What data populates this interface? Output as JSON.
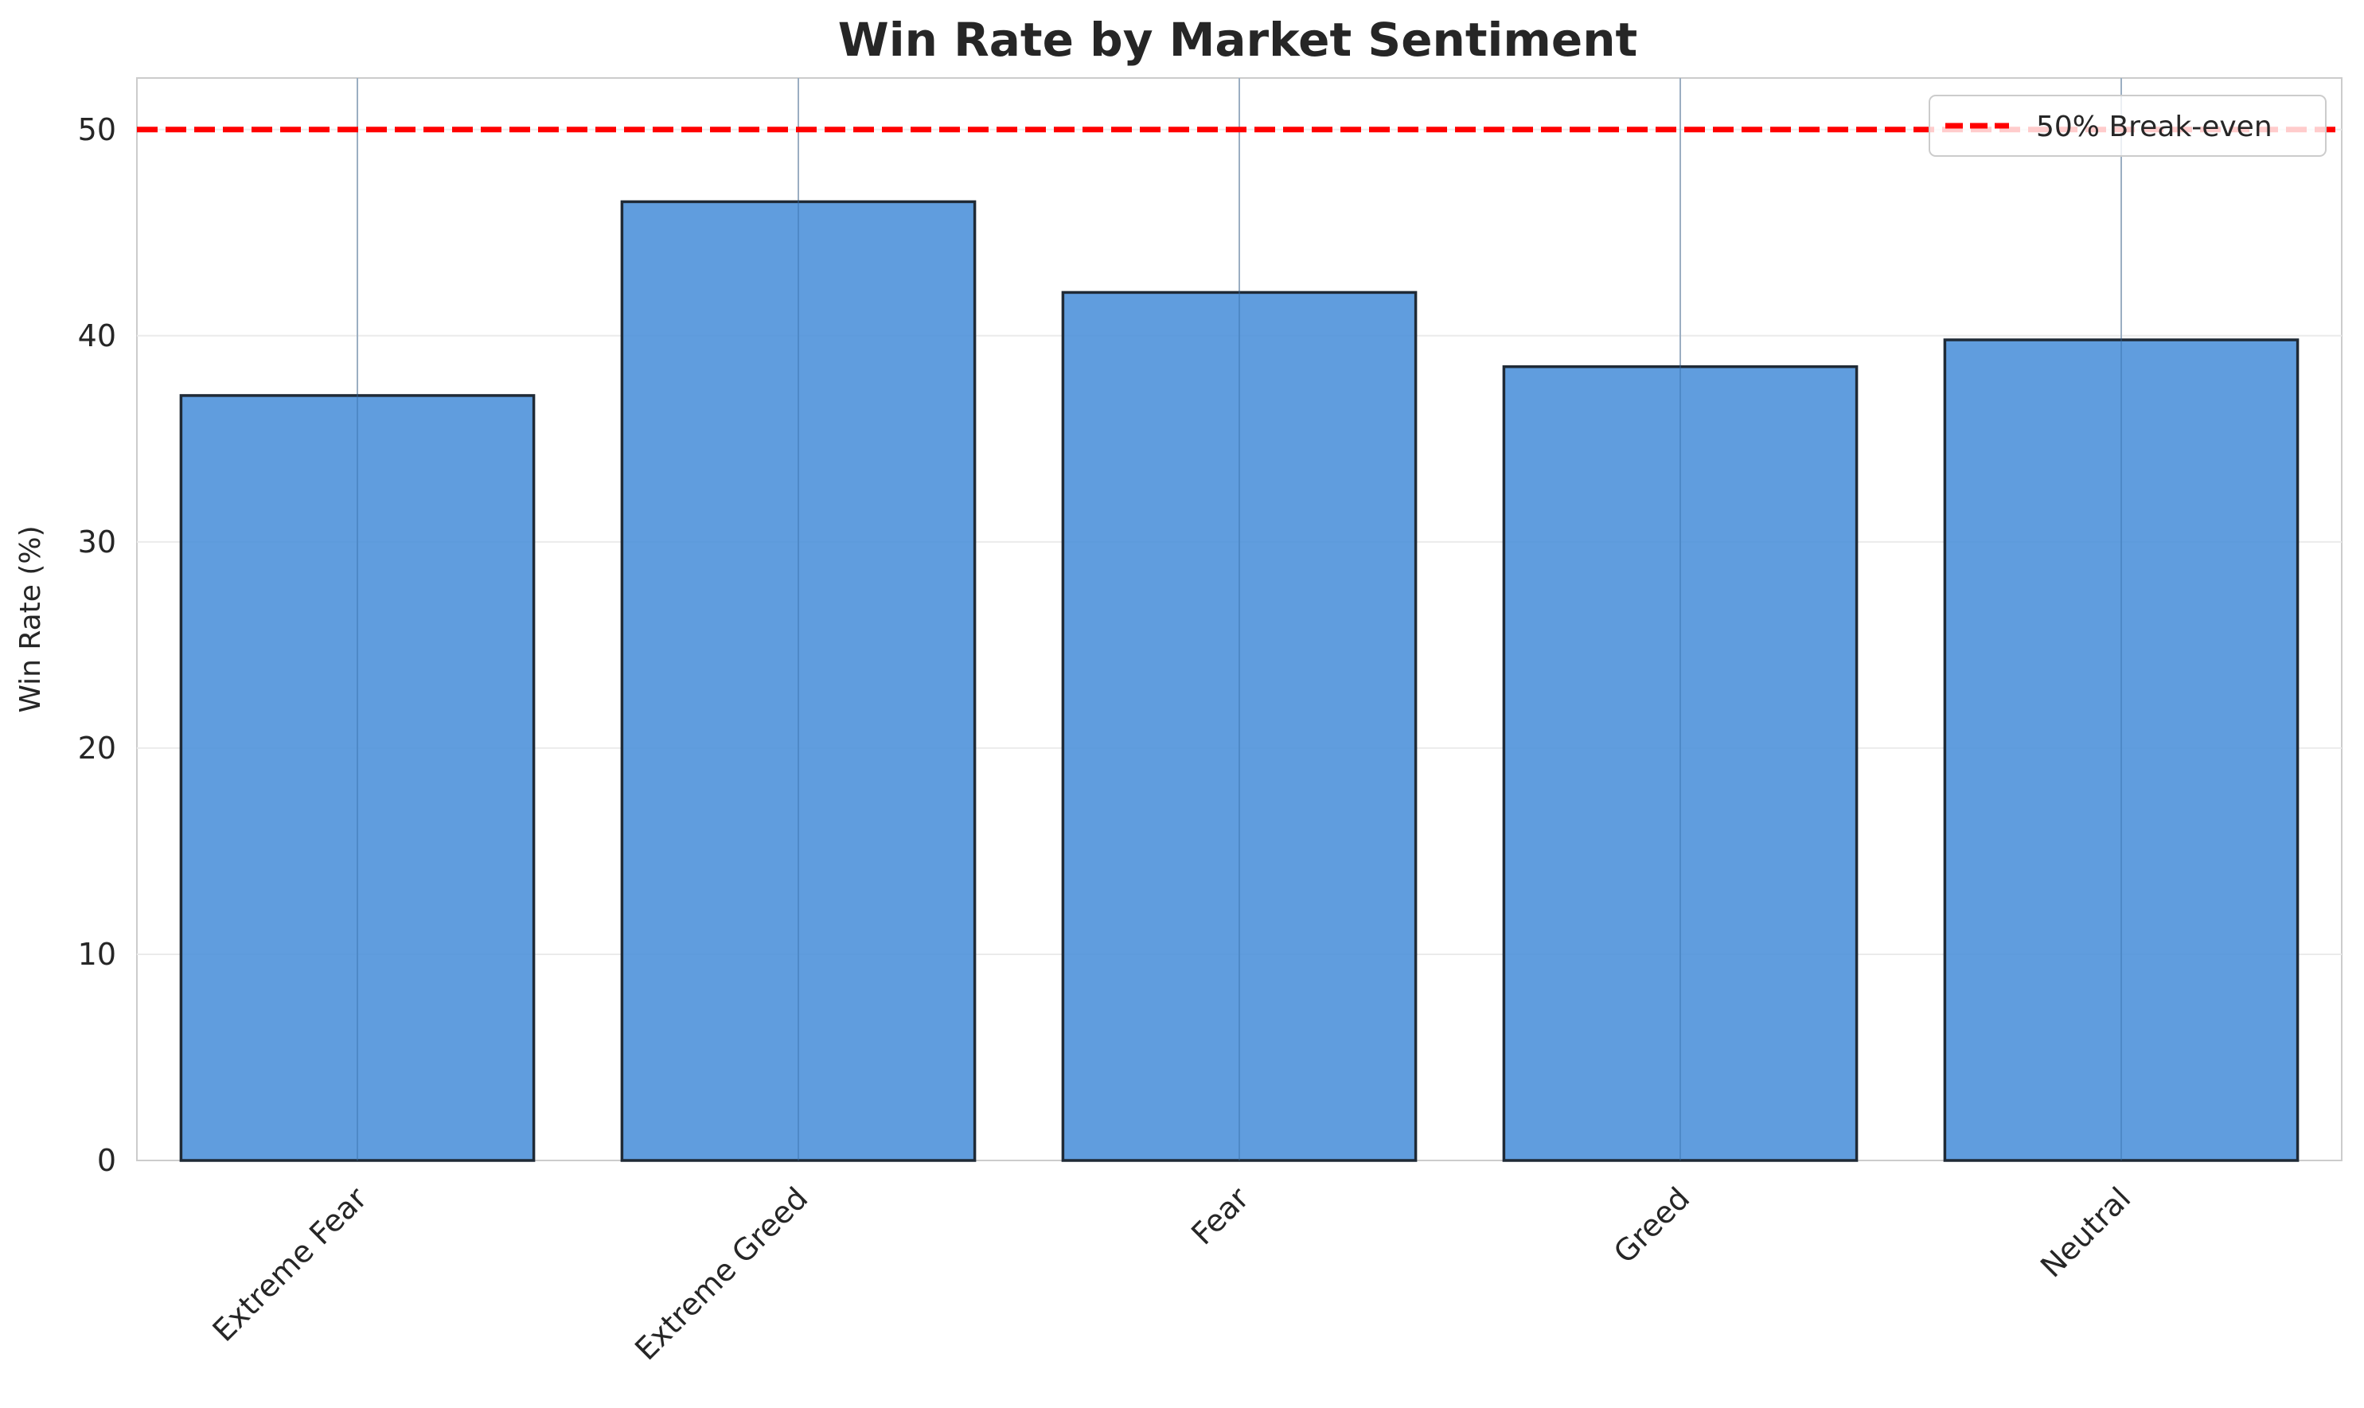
{
  "chart_data": {
    "type": "bar",
    "title": "Win Rate by Market Sentiment",
    "xlabel": "",
    "ylabel": "Win Rate (%)",
    "categories": [
      "Extreme Fear",
      "Extreme Greed",
      "Fear",
      "Greed",
      "Neutral"
    ],
    "values": [
      37.1,
      46.5,
      42.1,
      38.5,
      39.8
    ],
    "ylim": [
      0,
      52.5
    ],
    "yticks": [
      0,
      10,
      20,
      30,
      40,
      50
    ],
    "xtick_rotation_deg": 45,
    "grid": true,
    "bar_color": "#4a90d9",
    "bar_edge_color": "#1f2a36",
    "reference_line": {
      "value": 50,
      "label": "50% Break-even",
      "color": "#ff0000",
      "style": "dashed"
    },
    "legend": {
      "placement": "top-right",
      "entries": [
        "50% Break-even"
      ]
    }
  }
}
